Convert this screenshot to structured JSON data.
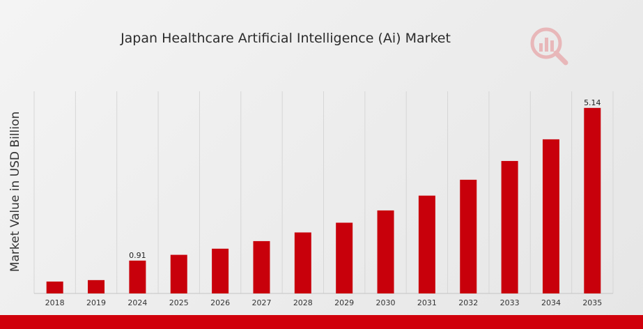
{
  "chart_data": {
    "type": "bar",
    "title": "Japan Healthcare Artificial Intelligence (Ai) Market",
    "xlabel": "",
    "ylabel": "Market Value in USD Billion",
    "categories": [
      "2018",
      "2019",
      "2024",
      "2025",
      "2026",
      "2027",
      "2028",
      "2029",
      "2030",
      "2031",
      "2032",
      "2033",
      "2034",
      "2035"
    ],
    "values": [
      0.33,
      0.37,
      0.91,
      1.07,
      1.24,
      1.45,
      1.69,
      1.96,
      2.3,
      2.71,
      3.15,
      3.67,
      4.27,
      5.14
    ],
    "data_labels": {
      "2024": "0.91",
      "2035": "5.14"
    },
    "ylim": [
      0,
      5.6
    ],
    "grid": "vertical",
    "legend": "none",
    "colors": {
      "bar": "#c8000b",
      "grid": "#d6d6d6",
      "accent": "#d0000b"
    }
  },
  "icons": {
    "logo": "market-research-logo-icon"
  }
}
